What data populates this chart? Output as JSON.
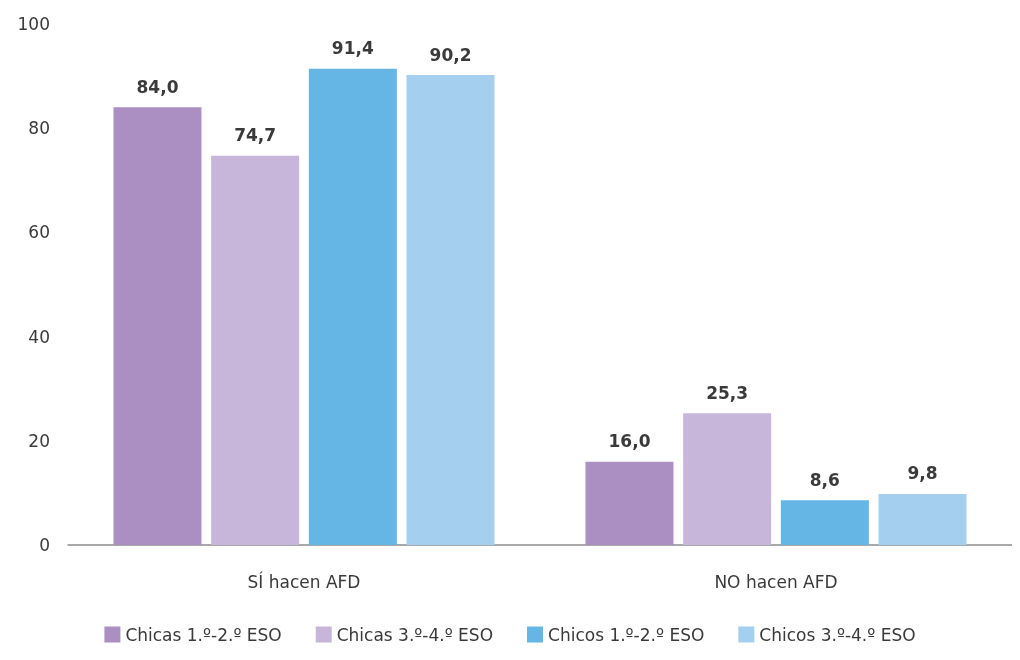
{
  "chart_data": {
    "type": "bar",
    "categories": [
      "SÍ hacen AFD",
      "NO hacen AFD"
    ],
    "series": [
      {
        "name": "Chicas 1.º-2.º ESO",
        "color": "#ab8fc2",
        "values": [
          84.0,
          16.0
        ],
        "value_labels": [
          "84,0",
          "16,0"
        ]
      },
      {
        "name": "Chicas 3.º-4.º ESO",
        "color": "#c8b6da",
        "values": [
          74.7,
          25.3
        ],
        "value_labels": [
          "74,7",
          "25,3"
        ]
      },
      {
        "name": "Chicos 1.º-2.º ESO",
        "color": "#65b6e4",
        "values": [
          91.4,
          8.6
        ],
        "value_labels": [
          "91,4",
          "8,6"
        ]
      },
      {
        "name": "Chicos 3.º-4.º ESO",
        "color": "#a4cfee",
        "values": [
          90.2,
          9.8
        ],
        "value_labels": [
          "90,2",
          "9,8"
        ]
      }
    ],
    "ylim": [
      0,
      100
    ],
    "yticks": [
      0,
      20,
      40,
      60,
      80,
      100
    ],
    "grid": false,
    "legend": "bottom"
  }
}
